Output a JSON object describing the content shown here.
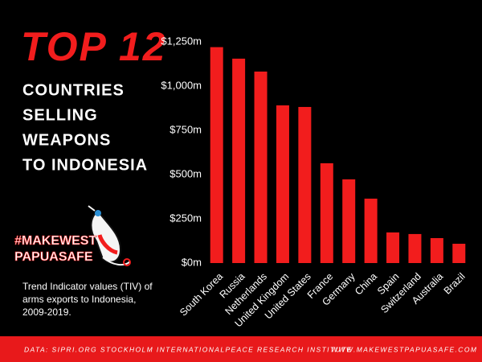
{
  "chart_data": {
    "type": "bar",
    "title": "TOP 12",
    "subtitle": [
      "COUNTRIES",
      "SELLING",
      "WEAPONS",
      "TO INDONESIA"
    ],
    "categories": [
      "South Korea",
      "Russia",
      "Netherlands",
      "United Kingdom",
      "United States",
      "France",
      "Germany",
      "China",
      "Spain",
      "Switzerland",
      "Australia",
      "Brazil"
    ],
    "values": [
      1220,
      1155,
      1082,
      891,
      882,
      564,
      473,
      364,
      173,
      164,
      141,
      109
    ],
    "color": "#f21d1d",
    "ylim": [
      0,
      1250
    ],
    "yticks": [
      {
        "value": 0,
        "label": "$0m"
      },
      {
        "value": 250,
        "label": "$250m"
      },
      {
        "value": 500,
        "label": "$500m"
      },
      {
        "value": 750,
        "label": "$750m"
      },
      {
        "value": 1000,
        "label": "$1,000m"
      },
      {
        "value": 1250,
        "label": "$1,250m"
      }
    ],
    "grid": false
  },
  "logo": {
    "lines": [
      "#MAKEWEST",
      "PAPUASAFE"
    ]
  },
  "note": [
    "Trend Indicator values (TIV) of",
    "arms exports  to Indonesia,",
    "2009-2019."
  ],
  "footer": {
    "source": "DATA: SIPRI.ORG STOCKHOLM INTERNATIONALPEACE RESEARCH INSTITUTE",
    "website": "WWW.MAKEWESTPAPUASAFE.COM"
  }
}
